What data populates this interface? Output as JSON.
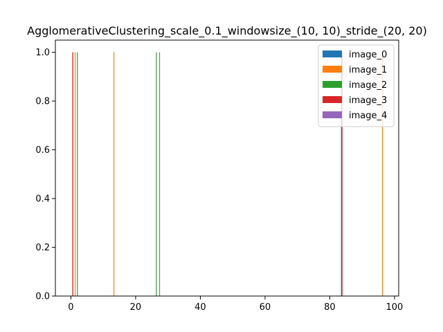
{
  "chart_data": {
    "type": "bar",
    "title": "AgglomerativeClustering_scale_0.1_windowsize_(10, 10)_stride_(20, 20)",
    "xlabel": "",
    "ylabel": "",
    "xlim": [
      -4.8,
      101.3
    ],
    "ylim": [
      0,
      1.05
    ],
    "x_ticks": [
      "0",
      "20",
      "40",
      "60",
      "80",
      "100"
    ],
    "y_ticks": [
      "0.0",
      "0.2",
      "0.4",
      "0.6",
      "0.8",
      "1.0"
    ],
    "grid": false,
    "legend_position": "top-right",
    "series": [
      {
        "name": "image_0",
        "color": "#1f77b4",
        "x": [
          0.6,
          83.6
        ],
        "values": [
          1,
          1
        ]
      },
      {
        "name": "image_1",
        "color": "#ff7f0e",
        "x": [
          1.3,
          13.3,
          96.3
        ],
        "values": [
          1,
          1,
          1
        ]
      },
      {
        "name": "image_2",
        "color": "#2ca02c",
        "x": [
          2.0,
          26.4
        ],
        "values": [
          1,
          1
        ]
      },
      {
        "name": "image_3",
        "color": "#d62728",
        "x": [
          0.6,
          83.8
        ],
        "values": [
          1,
          1
        ]
      },
      {
        "name": "image_4",
        "color": "#9467bd",
        "x": [
          27.4
        ],
        "values": [
          1
        ]
      }
    ]
  }
}
